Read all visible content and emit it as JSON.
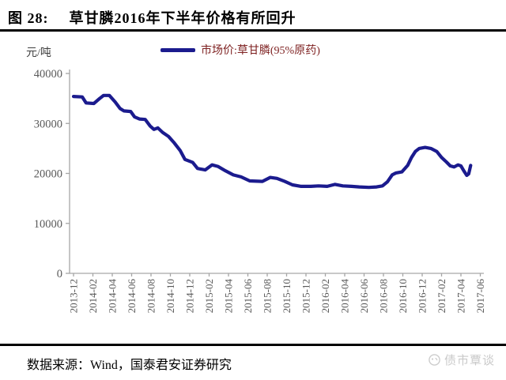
{
  "header": {
    "figure_label": "图 28:",
    "title": "草甘膦2016年下半年价格有所回升"
  },
  "footer": {
    "source": "数据来源：Wind，国泰君安证券研究",
    "watermark": "债市覃谈"
  },
  "chart_data": {
    "type": "line",
    "unit_label": "元/吨",
    "legend": "市场价:草甘膦(95%原药)",
    "legend_position": "top-center",
    "grid": false,
    "ylim": [
      0,
      40000
    ],
    "yticks": [
      0,
      10000,
      20000,
      30000,
      40000
    ],
    "xtick_labels": [
      "2013-12",
      "2014-02",
      "2014-04",
      "2014-06",
      "2014-08",
      "2014-10",
      "2014-12",
      "2015-02",
      "2015-04",
      "2015-06",
      "2015-08",
      "2015-10",
      "2015-12",
      "2016-02",
      "2016-04",
      "2016-06",
      "2016-08",
      "2016-10",
      "2016-12",
      "2017-02",
      "2017-04",
      "2017-06"
    ],
    "x_unit": "months_since_2013_12",
    "x_range_months": [
      0,
      42
    ],
    "colors": {
      "line": "#1b1b8e",
      "axis": "#a6a6a6",
      "tick_label": "#595959",
      "legend_text": "#7e2121"
    },
    "series": [
      {
        "name": "市场价:草甘膦(95%原药)",
        "points": [
          [
            0,
            35400
          ],
          [
            0.9,
            35300
          ],
          [
            1.3,
            34100
          ],
          [
            2.1,
            34000
          ],
          [
            2.7,
            35000
          ],
          [
            3.1,
            35600
          ],
          [
            3.7,
            35600
          ],
          [
            4.3,
            34300
          ],
          [
            4.8,
            33000
          ],
          [
            5.2,
            32500
          ],
          [
            5.9,
            32400
          ],
          [
            6.3,
            31300
          ],
          [
            6.8,
            30900
          ],
          [
            7.4,
            30800
          ],
          [
            7.9,
            29500
          ],
          [
            8.3,
            28800
          ],
          [
            8.7,
            29100
          ],
          [
            9.2,
            28200
          ],
          [
            9.8,
            27400
          ],
          [
            10.4,
            26100
          ],
          [
            11.0,
            24600
          ],
          [
            11.5,
            22800
          ],
          [
            12.3,
            22200
          ],
          [
            12.8,
            21000
          ],
          [
            13.6,
            20700
          ],
          [
            14.3,
            21700
          ],
          [
            14.9,
            21400
          ],
          [
            15.7,
            20500
          ],
          [
            16.5,
            19700
          ],
          [
            17.3,
            19300
          ],
          [
            18.2,
            18500
          ],
          [
            19.5,
            18400
          ],
          [
            20.3,
            19200
          ],
          [
            21.0,
            19000
          ],
          [
            21.8,
            18400
          ],
          [
            22.6,
            17700
          ],
          [
            23.5,
            17400
          ],
          [
            24.5,
            17400
          ],
          [
            25.3,
            17500
          ],
          [
            26.2,
            17400
          ],
          [
            27.0,
            17800
          ],
          [
            27.8,
            17500
          ],
          [
            28.7,
            17400
          ],
          [
            29.5,
            17300
          ],
          [
            30.5,
            17200
          ],
          [
            31.3,
            17300
          ],
          [
            31.9,
            17500
          ],
          [
            32.4,
            18300
          ],
          [
            32.9,
            19700
          ],
          [
            33.3,
            20100
          ],
          [
            33.9,
            20300
          ],
          [
            34.5,
            21600
          ],
          [
            34.9,
            23200
          ],
          [
            35.3,
            24400
          ],
          [
            35.7,
            25000
          ],
          [
            36.3,
            25200
          ],
          [
            36.9,
            25000
          ],
          [
            37.5,
            24400
          ],
          [
            38.0,
            23200
          ],
          [
            38.5,
            22300
          ],
          [
            38.9,
            21500
          ],
          [
            39.3,
            21300
          ],
          [
            39.7,
            21700
          ],
          [
            40.0,
            21500
          ],
          [
            40.3,
            20500
          ],
          [
            40.6,
            19600
          ],
          [
            40.8,
            19900
          ],
          [
            41.0,
            21600
          ]
        ]
      }
    ]
  }
}
